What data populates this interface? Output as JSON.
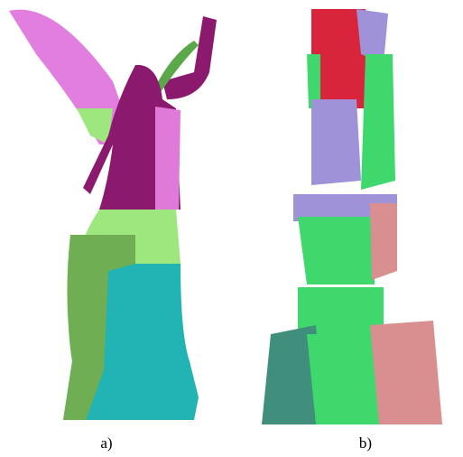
{
  "captions": [
    "a)",
    "b)"
  ]
}
